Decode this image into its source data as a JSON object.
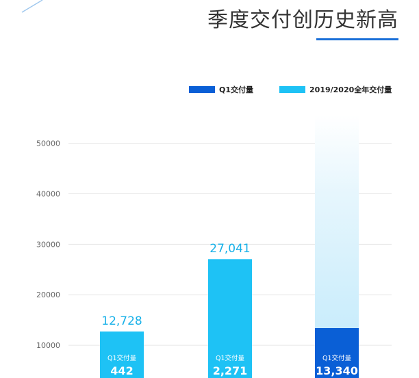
{
  "title": "季度交付创历史新高",
  "colors": {
    "q1": "#0a5fd6",
    "annual": "#1ec2f5",
    "annual_fade": "#d8f1fb",
    "grid": "#e6e6e6",
    "tick": "#666666",
    "value_label": "#16b0e8",
    "title_underline": "#1a6fd8"
  },
  "legend": [
    {
      "label": "Q1交付量",
      "color": "#0a5fd6"
    },
    {
      "label": "2019/2020全年交付量",
      "color": "#1ec2f5"
    }
  ],
  "chart_data": {
    "type": "bar",
    "categories": [
      "",
      "",
      ""
    ],
    "ylim": [
      0,
      55000
    ],
    "yticks": [
      "10000",
      "20000",
      "30000",
      "40000",
      "50000"
    ],
    "grid": true,
    "legend_position": "top-right",
    "series": [
      {
        "name": "2019/2020全年交付量",
        "values": [
          12728,
          27041,
          null
        ]
      },
      {
        "name": "Q1交付量",
        "values": [
          442,
          2271,
          13340
        ]
      }
    ],
    "annual_labels": [
      "12,728",
      "27,041",
      ""
    ],
    "q1_caption": "Q1交付量",
    "q1_labels": [
      "442",
      "2,271",
      "13,340"
    ]
  }
}
